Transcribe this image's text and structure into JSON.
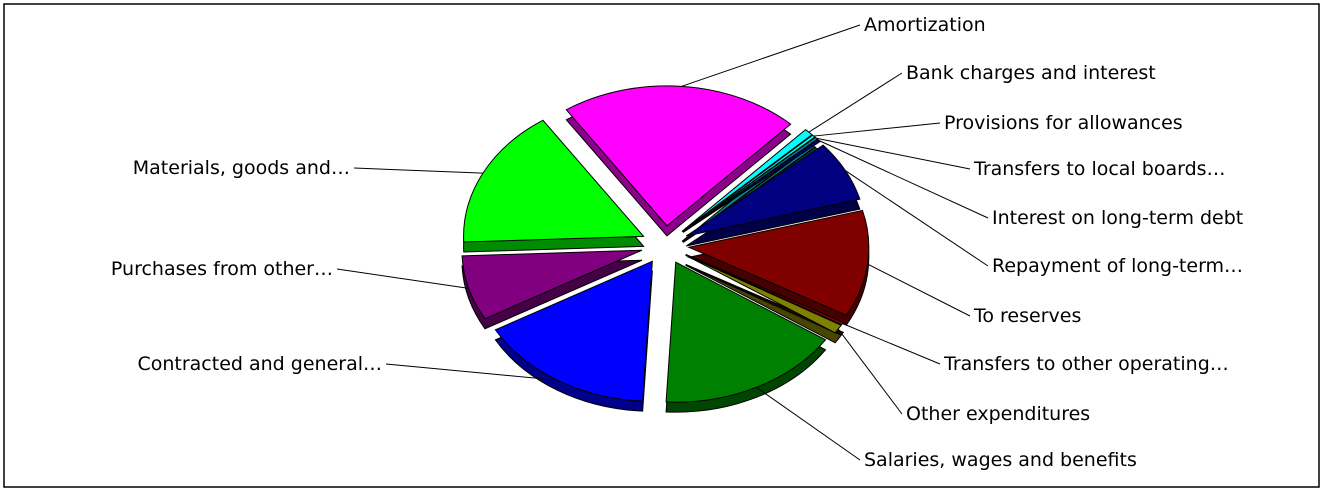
{
  "chart_data": {
    "type": "pie",
    "title": "",
    "variant": "3d-exploded",
    "slices": [
      {
        "label": "Amortization",
        "value": 21.5,
        "color": "#ff00ff"
      },
      {
        "label": "Bank charges and interest",
        "value": 0.8,
        "color": "#00ffff"
      },
      {
        "label": "Provisions for allowances",
        "value": 0.3,
        "color": "#00ffff"
      },
      {
        "label": "Transfers to local boards…",
        "value": 0.3,
        "color": "#008080"
      },
      {
        "label": "Interest on long-term debt",
        "value": 0.3,
        "color": "#000080"
      },
      {
        "label": "Repayment of long-term…",
        "value": 7.0,
        "color": "#000080"
      },
      {
        "label": "To reserves",
        "value": 12.3,
        "color": "#800000"
      },
      {
        "label": "Transfers to other operating…",
        "value": 0.3,
        "color": "#800000"
      },
      {
        "label": "Other expenditures",
        "value": 1.0,
        "color": "#808000"
      },
      {
        "label": "Salaries, wages and benefits",
        "value": 16.5,
        "color": "#008000"
      },
      {
        "label": "Contracted and general…",
        "value": 16.0,
        "color": "#0000ff"
      },
      {
        "label": "Purchases from other…",
        "value": 7.5,
        "color": "#800080"
      },
      {
        "label": "Materials, goods and…",
        "value": 16.2,
        "color": "#00ff00"
      }
    ],
    "legend": "none"
  }
}
